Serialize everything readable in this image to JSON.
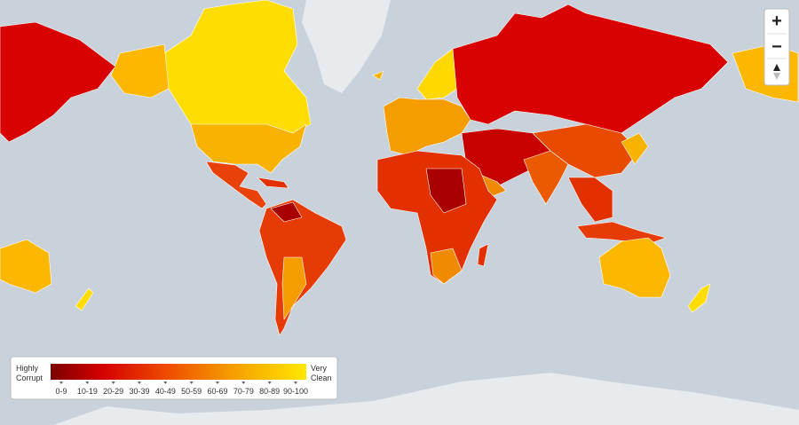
{
  "legend": {
    "low_label": [
      "Highly",
      "Corrupt"
    ],
    "high_label": [
      "Very",
      "Clean"
    ],
    "ranges": [
      "0-9",
      "10-19",
      "20-29",
      "30-39",
      "40-49",
      "50-59",
      "60-69",
      "70-79",
      "80-89",
      "90-100"
    ]
  },
  "zoom_controls": {
    "zoom_in": "+",
    "zoom_out": "−"
  }
}
